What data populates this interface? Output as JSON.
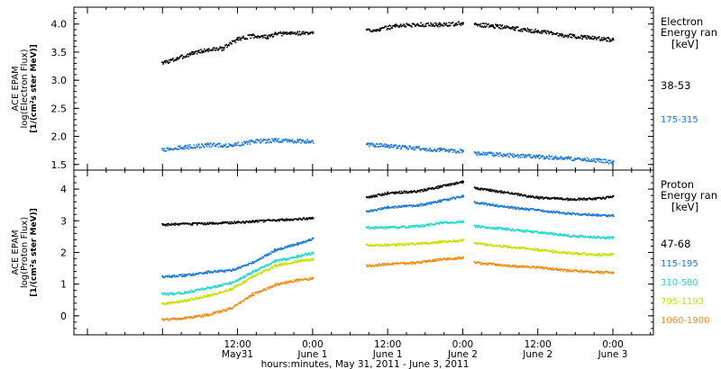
{
  "chart_data": [
    {
      "type": "scatter",
      "ylabel_lines": [
        "ACE EPAM",
        "log(Electron Flux)",
        "[1/(cm²s ster MeV)]"
      ],
      "ylim": [
        1.4,
        4.3
      ],
      "yticks": [
        1.5,
        2.0,
        2.5,
        3.0,
        3.5,
        4.0
      ],
      "ytick_labels": [
        "1.5",
        "2.0",
        "2.5",
        "3.0",
        "3.5",
        "4.0"
      ],
      "legend_title_lines": [
        "Electron",
        "Energy ran",
        "[keV]"
      ],
      "series": [
        {
          "name": "38-53",
          "color": "#000000",
          "segments": [
            {
              "x": [
                0.0,
                0.1,
                0.2,
                0.3,
                0.4,
                0.5,
                0.6,
                0.7,
                0.75,
                0.85,
                1.0
              ],
              "y": [
                3.32,
                3.4,
                3.5,
                3.55,
                3.58,
                3.75,
                3.8,
                3.78,
                3.83,
                3.85,
                3.85
              ]
            },
            {
              "x": [
                1.36,
                1.45,
                1.55,
                1.7,
                1.85,
                2.0
              ],
              "y": [
                3.9,
                3.92,
                3.98,
                4.0,
                4.0,
                4.02
              ]
            },
            {
              "x": [
                2.08,
                2.2,
                2.35,
                2.5,
                2.65,
                2.8,
                3.0
              ],
              "y": [
                4.0,
                3.98,
                3.93,
                3.88,
                3.82,
                3.78,
                3.73
              ]
            }
          ]
        },
        {
          "name": "175-315",
          "color": "#1a78d6",
          "segments": [
            {
              "x": [
                0.0,
                0.15,
                0.3,
                0.45,
                0.6,
                0.75,
                0.9,
                1.0
              ],
              "y": [
                1.78,
                1.82,
                1.86,
                1.85,
                1.92,
                1.94,
                1.93,
                1.92
              ]
            },
            {
              "x": [
                1.36,
                1.5,
                1.7,
                1.85,
                2.0
              ],
              "y": [
                1.86,
                1.84,
                1.8,
                1.77,
                1.75
              ]
            },
            {
              "x": [
                2.08,
                2.3,
                2.5,
                2.7,
                2.9,
                3.0
              ],
              "y": [
                1.72,
                1.68,
                1.65,
                1.62,
                1.58,
                1.55
              ]
            }
          ]
        }
      ]
    },
    {
      "type": "scatter",
      "ylabel_lines": [
        "ACE EPAM",
        "log(Proton Flux)",
        "[1/(cm²s ster MeV)]"
      ],
      "ylim": [
        -0.6,
        4.6
      ],
      "yticks": [
        0,
        1,
        2,
        3,
        4
      ],
      "ytick_labels": [
        "0",
        "1",
        "2",
        "3",
        "4"
      ],
      "legend_title_lines": [
        "Proton",
        "Energy ran",
        "[keV]"
      ],
      "series": [
        {
          "name": "47-68",
          "color": "#000000",
          "segments": [
            {
              "x": [
                0.0,
                0.2,
                0.4,
                0.6,
                0.8,
                1.0
              ],
              "y": [
                2.9,
                2.92,
                2.95,
                3.0,
                3.05,
                3.1
              ]
            },
            {
              "x": [
                1.36,
                1.5,
                1.7,
                1.85,
                2.0
              ],
              "y": [
                3.75,
                3.9,
                3.95,
                4.1,
                4.25
              ]
            },
            {
              "x": [
                2.08,
                2.3,
                2.5,
                2.7,
                2.9,
                3.0
              ],
              "y": [
                4.05,
                3.9,
                3.75,
                3.7,
                3.72,
                3.78
              ]
            }
          ]
        },
        {
          "name": "115-195",
          "color": "#1a78d6",
          "segments": [
            {
              "x": [
                0.0,
                0.15,
                0.3,
                0.45,
                0.6,
                0.75,
                0.9,
                1.0
              ],
              "y": [
                1.25,
                1.3,
                1.4,
                1.45,
                1.7,
                2.1,
                2.3,
                2.45
              ]
            },
            {
              "x": [
                1.36,
                1.5,
                1.7,
                1.85,
                2.0
              ],
              "y": [
                3.3,
                3.45,
                3.5,
                3.65,
                3.8
              ]
            },
            {
              "x": [
                2.08,
                2.3,
                2.5,
                2.7,
                2.9,
                3.0
              ],
              "y": [
                3.6,
                3.45,
                3.35,
                3.25,
                3.2,
                3.18
              ]
            }
          ]
        },
        {
          "name": "310-580",
          "color": "#20d8c8",
          "segments": [
            {
              "x": [
                0.0,
                0.15,
                0.3,
                0.45,
                0.6,
                0.75,
                0.9,
                1.0
              ],
              "y": [
                0.7,
                0.75,
                0.9,
                1.05,
                1.4,
                1.75,
                1.9,
                2.0
              ]
            },
            {
              "x": [
                1.36,
                1.5,
                1.7,
                1.85,
                2.0
              ],
              "y": [
                2.8,
                2.8,
                2.85,
                2.95,
                3.0
              ]
            },
            {
              "x": [
                2.08,
                2.3,
                2.5,
                2.7,
                2.9,
                3.0
              ],
              "y": [
                2.85,
                2.75,
                2.65,
                2.55,
                2.5,
                2.48
              ]
            }
          ]
        },
        {
          "name": "795-1193",
          "color": "#c8e000",
          "segments": [
            {
              "x": [
                0.0,
                0.15,
                0.3,
                0.45,
                0.6,
                0.75,
                0.9,
                1.0
              ],
              "y": [
                0.4,
                0.5,
                0.65,
                0.85,
                1.25,
                1.6,
                1.75,
                1.8
              ]
            },
            {
              "x": [
                1.36,
                1.5,
                1.7,
                1.85,
                2.0
              ],
              "y": [
                2.25,
                2.25,
                2.3,
                2.35,
                2.4
              ]
            },
            {
              "x": [
                2.08,
                2.3,
                2.5,
                2.7,
                2.9,
                3.0
              ],
              "y": [
                2.3,
                2.2,
                2.1,
                2.0,
                1.95,
                1.95
              ]
            }
          ]
        },
        {
          "name": "1060-1900",
          "color": "#f08c14",
          "segments": [
            {
              "x": [
                0.0,
                0.15,
                0.3,
                0.45,
                0.6,
                0.75,
                0.9,
                1.0
              ],
              "y": [
                -0.1,
                -0.05,
                0.05,
                0.25,
                0.7,
                1.0,
                1.15,
                1.2
              ]
            },
            {
              "x": [
                1.36,
                1.5,
                1.7,
                1.85,
                2.0
              ],
              "y": [
                1.6,
                1.65,
                1.7,
                1.8,
                1.85
              ]
            },
            {
              "x": [
                2.08,
                2.3,
                2.5,
                2.7,
                2.9,
                3.0
              ],
              "y": [
                1.7,
                1.6,
                1.55,
                1.45,
                1.4,
                1.38
              ]
            }
          ]
        }
      ]
    }
  ],
  "x_axis": {
    "xlim": [
      -0.59,
      3.27
    ],
    "major_ticks": [
      {
        "x": 0.5,
        "line1": "12:00",
        "line2": "May31"
      },
      {
        "x": 1.0,
        "line1": "0:00",
        "line2": "June 1"
      },
      {
        "x": 1.5,
        "line1": "12:00",
        "line2": "June 1"
      },
      {
        "x": 2.0,
        "line1": "0:00",
        "line2": "June 2"
      },
      {
        "x": 2.5,
        "line1": "12:00",
        "line2": "June 2"
      },
      {
        "x": 3.0,
        "line1": "0:00",
        "line2": "June 3"
      }
    ],
    "title": "hours:minutes, May 31, 2011 - June  3, 2011"
  }
}
